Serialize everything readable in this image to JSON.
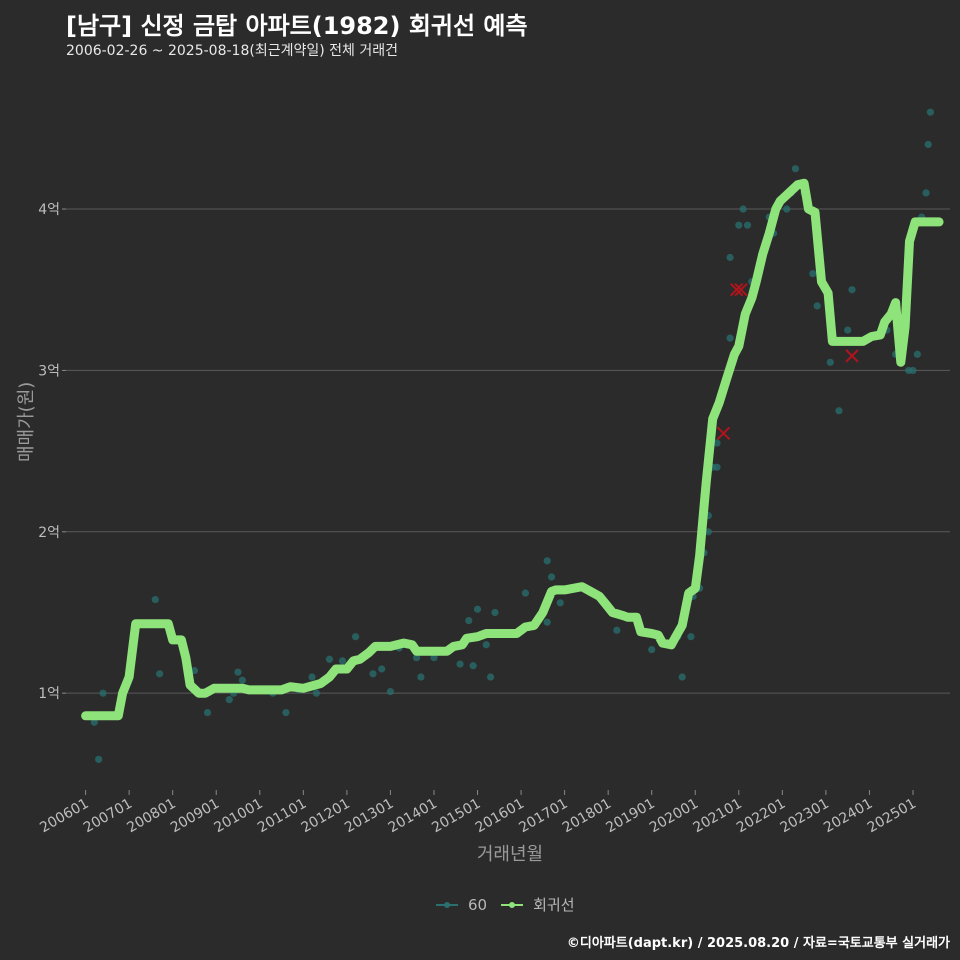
{
  "title": "[남구] 신정 금탑 아파트(1982) 회귀선 예측",
  "subtitle": "2006-02-26 ~ 2025-08-18(최근계약일) 전체 거래건",
  "footer": "©디아파트(dapt.kr) / 2025.08.20 / 자료=국토교통부 실거래가",
  "colors": {
    "background": "#2b2b2b",
    "grid": "#5a5a5a",
    "scatter": "#2a7070",
    "line": "#8ee37a",
    "outlier": "#b0141c"
  },
  "chart_data": {
    "type": "scatter",
    "xlabel": "거래년월",
    "ylabel": "매매가(원)",
    "xlim": [
      2005.55,
      2025.85
    ],
    "ylim": [
      0.4,
      4.75
    ],
    "y_ticks": [
      1,
      2,
      3,
      4
    ],
    "y_tick_labels": [
      "1억",
      "2억",
      "3억",
      "4억"
    ],
    "x_ticks": [
      2006,
      2007,
      2008,
      2009,
      2010,
      2011,
      2012,
      2013,
      2014,
      2015,
      2016,
      2017,
      2018,
      2019,
      2020,
      2021,
      2022,
      2023,
      2024,
      2025
    ],
    "x_tick_labels": [
      "200601",
      "200701",
      "200801",
      "200901",
      "201001",
      "201101",
      "201201",
      "201301",
      "201401",
      "201501",
      "201601",
      "201701",
      "201801",
      "201901",
      "202001",
      "202101",
      "202201",
      "202301",
      "202401",
      "202501"
    ],
    "legend": [
      {
        "label": "60",
        "kind": "scatter"
      },
      {
        "label": "회귀선",
        "kind": "line"
      }
    ],
    "series": [
      {
        "name": "60",
        "kind": "scatter",
        "unit": "억원",
        "points": [
          [
            2006.2,
            0.82
          ],
          [
            2006.3,
            0.59
          ],
          [
            2006.4,
            1.0
          ],
          [
            2007.6,
            1.58
          ],
          [
            2007.7,
            1.12
          ],
          [
            2008.5,
            1.14
          ],
          [
            2008.8,
            0.88
          ],
          [
            2009.3,
            0.96
          ],
          [
            2009.4,
            1.0
          ],
          [
            2009.5,
            1.13
          ],
          [
            2009.6,
            1.08
          ],
          [
            2010.3,
            1.0
          ],
          [
            2010.6,
            0.88
          ],
          [
            2010.9,
            1.02
          ],
          [
            2011.2,
            1.1
          ],
          [
            2011.3,
            1.0
          ],
          [
            2011.6,
            1.21
          ],
          [
            2011.9,
            1.2
          ],
          [
            2012.2,
            1.35
          ],
          [
            2012.6,
            1.12
          ],
          [
            2012.8,
            1.15
          ],
          [
            2013.0,
            1.01
          ],
          [
            2013.2,
            1.28
          ],
          [
            2013.6,
            1.22
          ],
          [
            2013.7,
            1.1
          ],
          [
            2014.0,
            1.22
          ],
          [
            2014.6,
            1.18
          ],
          [
            2014.8,
            1.45
          ],
          [
            2014.9,
            1.17
          ],
          [
            2015.0,
            1.52
          ],
          [
            2015.2,
            1.3
          ],
          [
            2015.3,
            1.1
          ],
          [
            2015.4,
            1.5
          ],
          [
            2016.1,
            1.62
          ],
          [
            2016.6,
            1.82
          ],
          [
            2016.7,
            1.72
          ],
          [
            2016.6,
            1.44
          ],
          [
            2016.9,
            1.56
          ],
          [
            2018.2,
            1.39
          ],
          [
            2019.0,
            1.27
          ],
          [
            2019.6,
            1.35
          ],
          [
            2019.7,
            1.1
          ],
          [
            2019.9,
            1.35
          ],
          [
            2019.95,
            1.6
          ],
          [
            2020.1,
            1.65
          ],
          [
            2020.2,
            1.87
          ],
          [
            2020.3,
            2.0
          ],
          [
            2020.3,
            2.1
          ],
          [
            2020.4,
            2.4
          ],
          [
            2020.5,
            2.55
          ],
          [
            2020.5,
            2.4
          ],
          [
            2020.8,
            3.2
          ],
          [
            2020.8,
            3.7
          ],
          [
            2021.0,
            3.9
          ],
          [
            2021.1,
            4.0
          ],
          [
            2021.2,
            3.9
          ],
          [
            2021.3,
            3.55
          ],
          [
            2021.7,
            3.95
          ],
          [
            2021.8,
            3.85
          ],
          [
            2022.1,
            4.0
          ],
          [
            2022.2,
            4.1
          ],
          [
            2022.3,
            4.25
          ],
          [
            2022.5,
            4.1
          ],
          [
            2022.7,
            3.6
          ],
          [
            2022.8,
            3.4
          ],
          [
            2023.1,
            3.05
          ],
          [
            2023.3,
            2.75
          ],
          [
            2023.5,
            3.25
          ],
          [
            2023.6,
            3.5
          ],
          [
            2024.4,
            3.25
          ],
          [
            2024.6,
            3.1
          ],
          [
            2024.9,
            3.0
          ],
          [
            2025.0,
            3.0
          ],
          [
            2025.1,
            3.1
          ],
          [
            2025.2,
            3.95
          ],
          [
            2025.3,
            4.1
          ],
          [
            2025.35,
            4.4
          ],
          [
            2025.4,
            4.6
          ]
        ]
      },
      {
        "name": "회귀선",
        "kind": "line",
        "unit": "억원",
        "points": [
          [
            2006.0,
            0.86
          ],
          [
            2006.75,
            0.86
          ],
          [
            2006.85,
            1.0
          ],
          [
            2007.0,
            1.1
          ],
          [
            2007.15,
            1.43
          ],
          [
            2007.9,
            1.43
          ],
          [
            2008.0,
            1.33
          ],
          [
            2008.2,
            1.33
          ],
          [
            2008.3,
            1.22
          ],
          [
            2008.4,
            1.05
          ],
          [
            2008.6,
            1.0
          ],
          [
            2008.75,
            1.0
          ],
          [
            2008.95,
            1.03
          ],
          [
            2009.6,
            1.03
          ],
          [
            2009.75,
            1.02
          ],
          [
            2010.5,
            1.02
          ],
          [
            2010.7,
            1.04
          ],
          [
            2011.0,
            1.03
          ],
          [
            2011.4,
            1.06
          ],
          [
            2011.6,
            1.1
          ],
          [
            2011.75,
            1.15
          ],
          [
            2012.0,
            1.15
          ],
          [
            2012.15,
            1.2
          ],
          [
            2012.3,
            1.21
          ],
          [
            2012.5,
            1.25
          ],
          [
            2012.65,
            1.29
          ],
          [
            2013.0,
            1.29
          ],
          [
            2013.3,
            1.31
          ],
          [
            2013.5,
            1.3
          ],
          [
            2013.6,
            1.26
          ],
          [
            2014.3,
            1.26
          ],
          [
            2014.45,
            1.29
          ],
          [
            2014.65,
            1.3
          ],
          [
            2014.75,
            1.34
          ],
          [
            2015.0,
            1.35
          ],
          [
            2015.2,
            1.37
          ],
          [
            2015.9,
            1.37
          ],
          [
            2016.1,
            1.41
          ],
          [
            2016.3,
            1.42
          ],
          [
            2016.5,
            1.5
          ],
          [
            2016.7,
            1.63
          ],
          [
            2016.8,
            1.64
          ],
          [
            2017.0,
            1.64
          ],
          [
            2017.4,
            1.66
          ],
          [
            2017.6,
            1.63
          ],
          [
            2017.8,
            1.6
          ],
          [
            2017.95,
            1.55
          ],
          [
            2018.1,
            1.5
          ],
          [
            2018.35,
            1.48
          ],
          [
            2018.45,
            1.47
          ],
          [
            2018.65,
            1.47
          ],
          [
            2018.75,
            1.38
          ],
          [
            2019.0,
            1.37
          ],
          [
            2019.15,
            1.36
          ],
          [
            2019.25,
            1.31
          ],
          [
            2019.45,
            1.3
          ],
          [
            2019.55,
            1.35
          ],
          [
            2019.7,
            1.42
          ],
          [
            2019.85,
            1.62
          ],
          [
            2020.0,
            1.65
          ],
          [
            2020.1,
            1.85
          ],
          [
            2020.25,
            2.3
          ],
          [
            2020.4,
            2.7
          ],
          [
            2020.55,
            2.8
          ],
          [
            2020.7,
            2.93
          ],
          [
            2020.9,
            3.1
          ],
          [
            2021.0,
            3.15
          ],
          [
            2021.15,
            3.35
          ],
          [
            2021.3,
            3.45
          ],
          [
            2021.4,
            3.55
          ],
          [
            2021.55,
            3.72
          ],
          [
            2021.7,
            3.85
          ],
          [
            2021.85,
            4.0
          ],
          [
            2021.95,
            4.05
          ],
          [
            2022.15,
            4.1
          ],
          [
            2022.35,
            4.15
          ],
          [
            2022.5,
            4.16
          ],
          [
            2022.6,
            4.0
          ],
          [
            2022.75,
            3.98
          ],
          [
            2022.9,
            3.55
          ],
          [
            2023.05,
            3.48
          ],
          [
            2023.15,
            3.18
          ],
          [
            2023.85,
            3.18
          ],
          [
            2024.05,
            3.21
          ],
          [
            2024.25,
            3.22
          ],
          [
            2024.35,
            3.3
          ],
          [
            2024.5,
            3.35
          ],
          [
            2024.6,
            3.42
          ],
          [
            2024.72,
            3.05
          ],
          [
            2024.82,
            3.27
          ],
          [
            2024.92,
            3.8
          ],
          [
            2025.05,
            3.92
          ],
          [
            2025.6,
            3.92
          ]
        ]
      },
      {
        "name": "outlier",
        "kind": "marker",
        "unit": "억원",
        "points": [
          [
            2020.65,
            2.61
          ],
          [
            2020.95,
            3.5
          ],
          [
            2021.05,
            3.5
          ],
          [
            2023.6,
            3.09
          ]
        ]
      }
    ]
  }
}
